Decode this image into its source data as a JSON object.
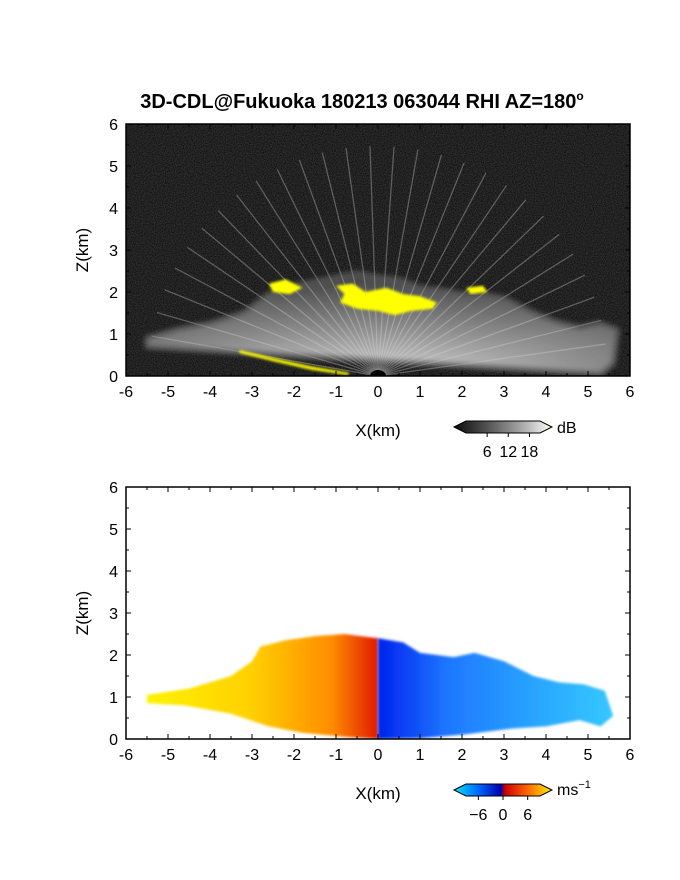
{
  "title": "3D-CDL@Fukuoka 180213 063044 RHI AZ=180",
  "title_superscript": "o",
  "chart_data": [
    {
      "type": "heatmap",
      "panel": "backscatter-intensity",
      "xlabel": "X(km)",
      "ylabel": "Z(km)",
      "xlim": [
        -6,
        6
      ],
      "ylim": [
        0,
        6
      ],
      "xticks": [
        -6,
        -5,
        -4,
        -3,
        -2,
        -1,
        0,
        1,
        2,
        3,
        4,
        5,
        6
      ],
      "yticks": [
        0,
        1,
        2,
        3,
        4,
        5,
        6
      ],
      "background": "#0a0a0a",
      "echo_boundary": [
        [
          -5.5,
          0.9
        ],
        [
          -4.8,
          1.1
        ],
        [
          -4.0,
          1.25
        ],
        [
          -3.2,
          1.5
        ],
        [
          -2.6,
          1.95
        ],
        [
          -2.0,
          2.15
        ],
        [
          -1.5,
          2.25
        ],
        [
          -1.0,
          2.35
        ],
        [
          -0.5,
          2.45
        ],
        [
          0.0,
          2.35
        ],
        [
          0.5,
          2.3
        ],
        [
          1.0,
          2.1
        ],
        [
          1.5,
          2.05
        ],
        [
          2.0,
          1.95
        ],
        [
          2.5,
          1.95
        ],
        [
          3.0,
          1.85
        ],
        [
          3.6,
          1.55
        ],
        [
          4.2,
          1.3
        ],
        [
          4.8,
          1.15
        ],
        [
          5.3,
          1.25
        ],
        [
          5.7,
          1.1
        ],
        [
          5.6,
          0.3
        ],
        [
          5.3,
          0.05
        ],
        [
          -5.5,
          0.7
        ]
      ],
      "high_echo_patches": [
        [
          [
            -1.0,
            2.15
          ],
          [
            -0.6,
            2.2
          ],
          [
            -0.3,
            2.0
          ],
          [
            0.2,
            2.1
          ],
          [
            0.6,
            1.95
          ],
          [
            1.0,
            1.9
          ],
          [
            1.4,
            1.75
          ],
          [
            1.3,
            1.6
          ],
          [
            0.8,
            1.55
          ],
          [
            0.4,
            1.45
          ],
          [
            0.0,
            1.55
          ],
          [
            -0.5,
            1.6
          ],
          [
            -0.9,
            1.75
          ],
          [
            -0.8,
            1.95
          ]
        ],
        [
          [
            -2.6,
            2.2
          ],
          [
            -2.2,
            2.3
          ],
          [
            -1.8,
            2.1
          ],
          [
            -2.1,
            1.95
          ],
          [
            -2.5,
            2.0
          ]
        ],
        [
          [
            2.1,
            2.1
          ],
          [
            2.5,
            2.15
          ],
          [
            2.6,
            2.0
          ],
          [
            2.2,
            1.95
          ]
        ],
        [
          [
            -3.3,
            0.55
          ],
          [
            -2.5,
            0.35
          ],
          [
            -1.6,
            0.15
          ],
          [
            -0.7,
            0.02
          ],
          [
            -0.7,
            0.08
          ],
          [
            -1.6,
            0.23
          ],
          [
            -2.5,
            0.43
          ],
          [
            -3.3,
            0.62
          ]
        ]
      ],
      "colorbar": {
        "label": "dB",
        "ticks": [
          6,
          12,
          18
        ],
        "range": [
          0,
          21
        ],
        "colors": [
          "#111111",
          "#555555",
          "#aaaaaa",
          "#f2f2f2",
          "#ffff00"
        ]
      }
    },
    {
      "type": "heatmap",
      "panel": "doppler-velocity",
      "xlabel": "X(km)",
      "ylabel": "Z(km)",
      "xlim": [
        -6,
        6
      ],
      "ylim": [
        0,
        6
      ],
      "xticks": [
        -6,
        -5,
        -4,
        -3,
        -2,
        -1,
        0,
        1,
        2,
        3,
        4,
        5,
        6
      ],
      "yticks": [
        0,
        1,
        2,
        3,
        4,
        5,
        6
      ],
      "background": "#ffffff",
      "positive_region": [
        [
          -5.5,
          1.05
        ],
        [
          -4.5,
          1.2
        ],
        [
          -3.5,
          1.5
        ],
        [
          -3.0,
          1.85
        ],
        [
          -2.8,
          2.2
        ],
        [
          -2.2,
          2.35
        ],
        [
          -1.5,
          2.45
        ],
        [
          -0.8,
          2.5
        ],
        [
          0.0,
          2.4
        ],
        [
          0.0,
          0.0
        ],
        [
          -0.8,
          0.05
        ],
        [
          -1.8,
          0.15
        ],
        [
          -2.6,
          0.3
        ],
        [
          -3.5,
          0.6
        ],
        [
          -4.6,
          0.8
        ],
        [
          -5.5,
          0.85
        ]
      ],
      "negative_region": [
        [
          0.0,
          2.4
        ],
        [
          0.6,
          2.3
        ],
        [
          1.0,
          2.05
        ],
        [
          1.8,
          1.95
        ],
        [
          2.3,
          2.05
        ],
        [
          3.0,
          1.85
        ],
        [
          3.7,
          1.5
        ],
        [
          4.3,
          1.35
        ],
        [
          4.9,
          1.3
        ],
        [
          5.4,
          1.15
        ],
        [
          5.6,
          0.55
        ],
        [
          5.3,
          0.3
        ],
        [
          4.8,
          0.45
        ],
        [
          4.0,
          0.3
        ],
        [
          3.2,
          0.25
        ],
        [
          2.0,
          0.1
        ],
        [
          1.0,
          0.02
        ],
        [
          0.0,
          0.0
        ]
      ],
      "colorbar": {
        "label": "ms",
        "label_superscript": "−1",
        "ticks": [
          -6,
          0,
          6
        ],
        "tick_labels": [
          "−6",
          "0",
          "6"
        ],
        "range": [
          -9,
          9
        ],
        "colors": [
          "#00e5ff",
          "#0044ff",
          "#0000aa",
          "#cc0000",
          "#ff6600",
          "#ffee00"
        ]
      }
    }
  ]
}
